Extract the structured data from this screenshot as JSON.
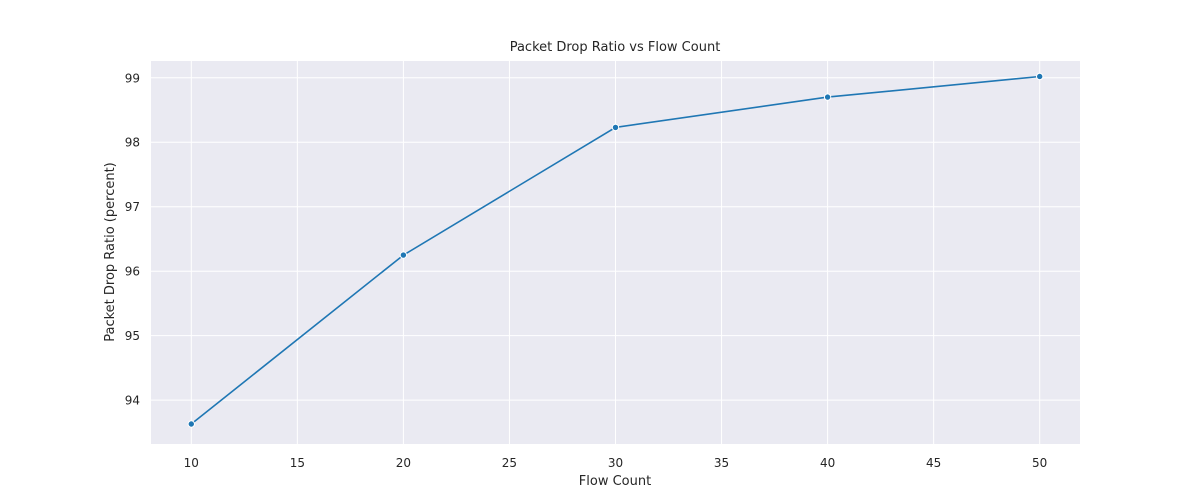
{
  "colors": {
    "series": "#1f77b4",
    "plot_background": "#eaeaf2",
    "grid": "#ffffff"
  },
  "chart_data": {
    "type": "line",
    "title": "Packet Drop Ratio vs Flow Count",
    "xlabel": "Flow Count",
    "ylabel": "Packet Drop Ratio (percent)",
    "x": [
      10,
      20,
      30,
      40,
      50
    ],
    "series": [
      {
        "values": [
          93.63,
          96.25,
          98.23,
          98.7,
          99.02
        ]
      }
    ],
    "xlim": [
      8.1,
      51.9
    ],
    "ylim": [
      93.32,
      99.26
    ],
    "xticks": [
      10,
      15,
      20,
      25,
      30,
      35,
      40,
      45,
      50
    ],
    "yticks": [
      94,
      95,
      96,
      97,
      98,
      99
    ],
    "grid": true,
    "legend": "none",
    "markers": true
  }
}
